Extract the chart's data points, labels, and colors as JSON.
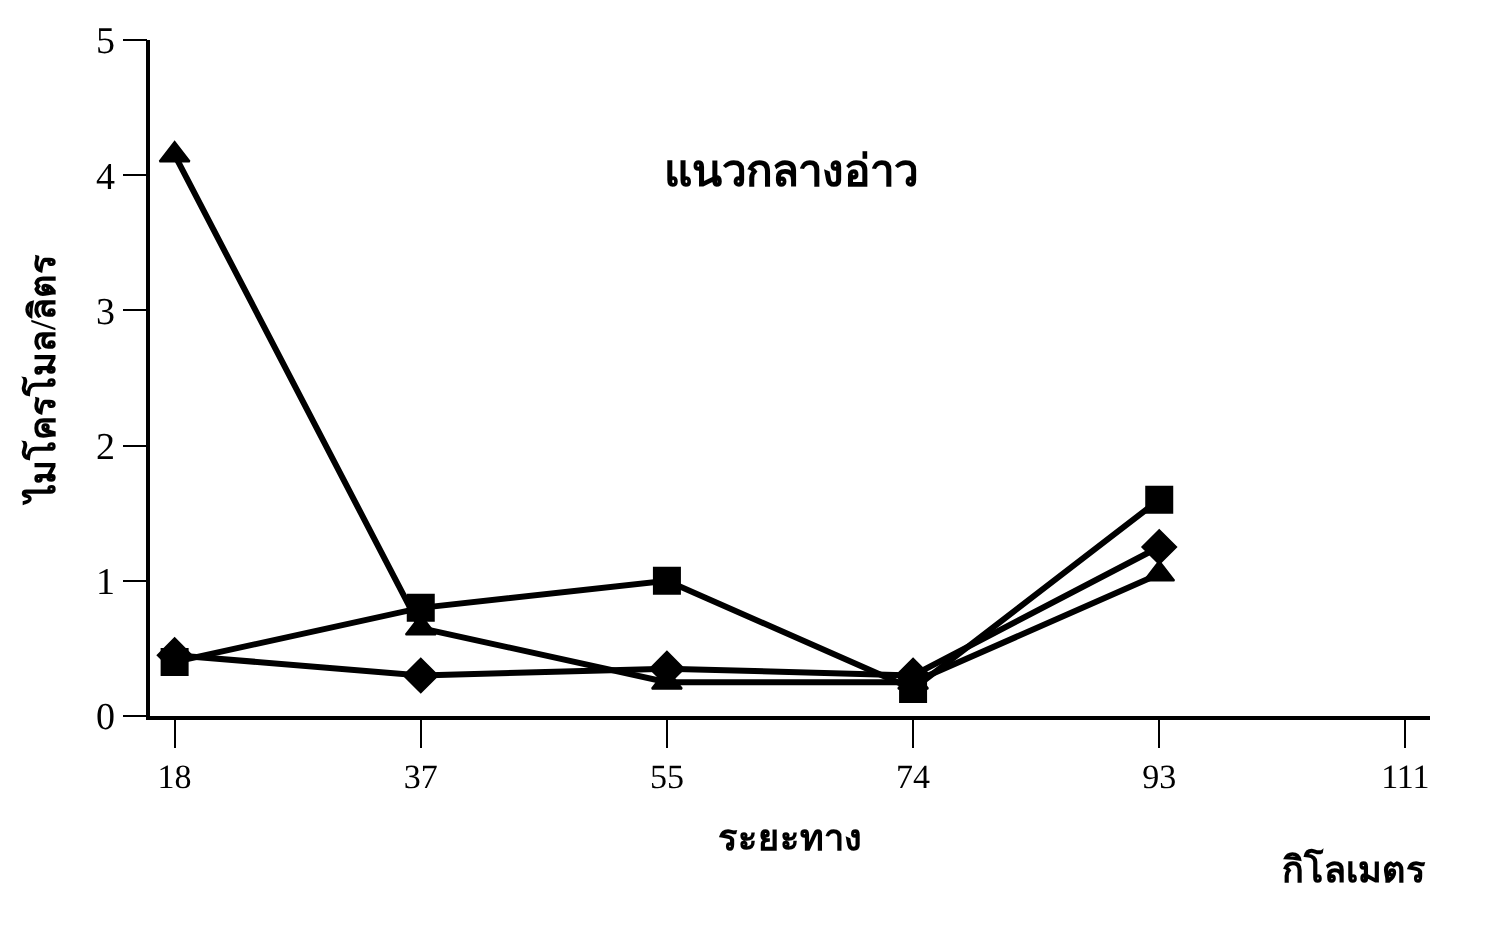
{
  "chart_data": {
    "type": "line",
    "title": "แนวกลางอ่าว",
    "xlabel": "ระยะทาง",
    "ylabel": "ไมโครโมล/ลิตร",
    "annotations": [
      "กิโลเมตร"
    ],
    "categories": [
      "18",
      "37",
      "55",
      "74",
      "93",
      "111"
    ],
    "series": [
      {
        "color": "#000000",
        "marker": "triangle",
        "values": [
          4.15,
          0.65,
          0.25,
          0.25,
          1.05,
          null
        ]
      },
      {
        "color": "#000000",
        "marker": "square",
        "values": [
          0.4,
          0.8,
          1.0,
          0.2,
          1.6,
          null
        ]
      },
      {
        "color": "#000000",
        "marker": "diamond",
        "values": [
          0.45,
          0.3,
          0.35,
          0.3,
          1.25,
          null
        ]
      }
    ],
    "ylim": [
      0,
      5
    ],
    "yticks": [
      0,
      1,
      2,
      3,
      4,
      5
    ],
    "line_style": "solid"
  }
}
